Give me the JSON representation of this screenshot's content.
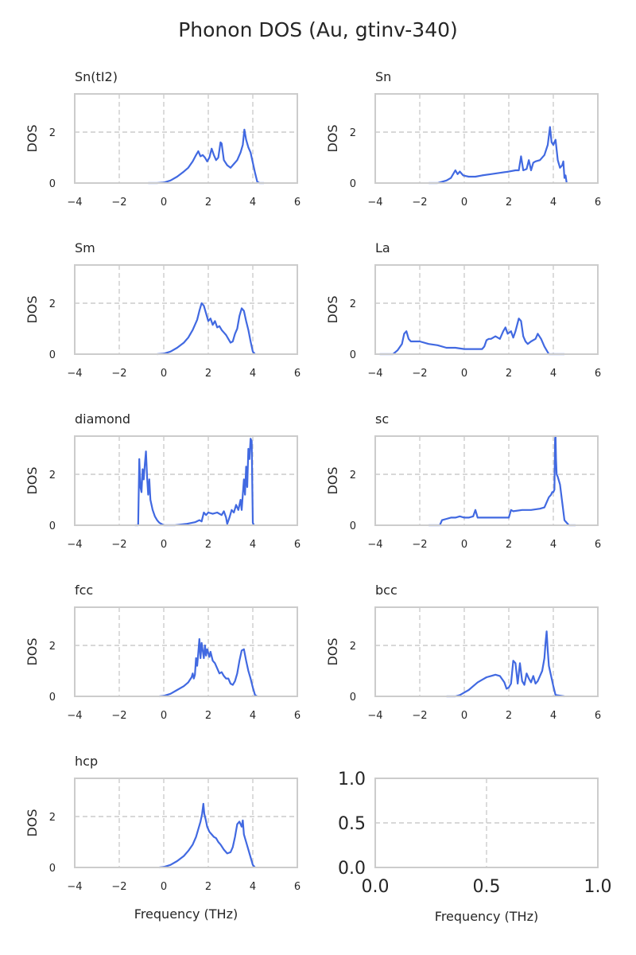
{
  "figure": {
    "title": "Phonon DOS (Au, gtinv-340)",
    "line_color": "#4169e1",
    "grid_color": "#cccccc"
  },
  "chart_data": [
    {
      "type": "line",
      "title": "Sn(tI2)",
      "xlabel": "",
      "ylabel": "DOS",
      "xlim": [
        -4,
        6
      ],
      "ylim": [
        0,
        3.5
      ],
      "xticks": [
        -4,
        -2,
        0,
        2,
        4,
        6
      ],
      "yticks": [
        0,
        2
      ],
      "grid": true,
      "series": [
        {
          "x": [
            -0.7,
            -0.3,
            0,
            0.3,
            0.6,
            0.9,
            1.1,
            1.3,
            1.45,
            1.55,
            1.65,
            1.75,
            1.85,
            1.95,
            2.05,
            2.15,
            2.25,
            2.35,
            2.45,
            2.55,
            2.6,
            2.7,
            2.85,
            3.0,
            3.15,
            3.3,
            3.45,
            3.55,
            3.62,
            3.7,
            3.8,
            3.9,
            4.0,
            4.1,
            4.2,
            4.3,
            4.5
          ],
          "y": [
            0,
            0,
            0.02,
            0.1,
            0.25,
            0.45,
            0.6,
            0.85,
            1.1,
            1.25,
            1.05,
            1.1,
            1.0,
            0.85,
            1.0,
            1.35,
            1.1,
            0.9,
            1.0,
            1.6,
            1.55,
            0.9,
            0.7,
            0.6,
            0.75,
            0.9,
            1.2,
            1.5,
            2.1,
            1.7,
            1.4,
            1.2,
            0.8,
            0.4,
            0.05,
            0,
            0
          ]
        }
      ]
    },
    {
      "type": "line",
      "title": "Sn",
      "xlabel": "",
      "ylabel": "DOS",
      "xlim": [
        -4,
        6
      ],
      "ylim": [
        0,
        3.5
      ],
      "xticks": [
        -4,
        -2,
        0,
        2,
        4,
        6
      ],
      "yticks": [
        0,
        2
      ],
      "grid": true,
      "series": [
        {
          "x": [
            -1.6,
            -1.2,
            -1.0,
            -0.8,
            -0.6,
            -0.4,
            -0.3,
            -0.2,
            -0.05,
            0.2,
            0.5,
            0.8,
            1.2,
            1.6,
            2.0,
            2.3,
            2.45,
            2.55,
            2.65,
            2.8,
            2.9,
            3.0,
            3.1,
            3.2,
            3.4,
            3.6,
            3.75,
            3.85,
            3.92,
            4.0,
            4.1,
            4.2,
            4.3,
            4.4,
            4.45,
            4.5,
            4.55,
            4.6
          ],
          "y": [
            0,
            0,
            0.05,
            0.1,
            0.2,
            0.5,
            0.35,
            0.45,
            0.3,
            0.25,
            0.25,
            0.3,
            0.35,
            0.4,
            0.45,
            0.5,
            0.5,
            1.05,
            0.5,
            0.55,
            0.9,
            0.5,
            0.8,
            0.85,
            0.9,
            1.1,
            1.5,
            2.2,
            1.6,
            1.5,
            1.7,
            0.9,
            0.6,
            0.7,
            0.85,
            0.2,
            0.3,
            0
          ]
        }
      ]
    },
    {
      "type": "line",
      "title": "Sm",
      "xlabel": "",
      "ylabel": "DOS",
      "xlim": [
        -4,
        6
      ],
      "ylim": [
        0,
        3.5
      ],
      "xticks": [
        -4,
        -2,
        0,
        2,
        4,
        6
      ],
      "yticks": [
        0,
        2
      ],
      "grid": true,
      "series": [
        {
          "x": [
            -0.3,
            0,
            0.3,
            0.6,
            0.9,
            1.1,
            1.3,
            1.5,
            1.6,
            1.7,
            1.8,
            1.9,
            2.0,
            2.1,
            2.2,
            2.3,
            2.4,
            2.5,
            2.6,
            2.7,
            2.8,
            2.9,
            3.0,
            3.1,
            3.2,
            3.3,
            3.4,
            3.5,
            3.6,
            3.7,
            3.8,
            3.9,
            4.0,
            4.1
          ],
          "y": [
            0,
            0.02,
            0.1,
            0.25,
            0.45,
            0.65,
            0.95,
            1.35,
            1.7,
            2.0,
            1.9,
            1.6,
            1.3,
            1.4,
            1.15,
            1.3,
            1.05,
            1.1,
            0.95,
            0.85,
            0.75,
            0.6,
            0.45,
            0.5,
            0.8,
            1.0,
            1.5,
            1.8,
            1.7,
            1.3,
            0.95,
            0.5,
            0.1,
            0
          ]
        }
      ]
    },
    {
      "type": "line",
      "title": "La",
      "xlabel": "",
      "ylabel": "DOS",
      "xlim": [
        -4,
        6
      ],
      "ylim": [
        0,
        3.5
      ],
      "xticks": [
        -4,
        -2,
        0,
        2,
        4,
        6
      ],
      "yticks": [
        0,
        2
      ],
      "grid": true,
      "series": [
        {
          "x": [
            -3.8,
            -3.2,
            -3.0,
            -2.8,
            -2.7,
            -2.6,
            -2.5,
            -2.4,
            -2.2,
            -2.0,
            -1.6,
            -1.2,
            -0.8,
            -0.4,
            0,
            0.4,
            0.8,
            0.9,
            1.0,
            1.1,
            1.2,
            1.4,
            1.6,
            1.75,
            1.85,
            1.95,
            2.1,
            2.2,
            2.3,
            2.45,
            2.55,
            2.65,
            2.75,
            2.85,
            3.0,
            3.2,
            3.3,
            3.45,
            3.6,
            3.8,
            4.2,
            4.5
          ],
          "y": [
            0,
            0,
            0.15,
            0.4,
            0.8,
            0.9,
            0.6,
            0.5,
            0.5,
            0.5,
            0.4,
            0.35,
            0.25,
            0.25,
            0.2,
            0.2,
            0.2,
            0.3,
            0.55,
            0.6,
            0.6,
            0.7,
            0.6,
            0.9,
            1.05,
            0.8,
            0.9,
            0.65,
            0.9,
            1.4,
            1.3,
            0.7,
            0.5,
            0.4,
            0.5,
            0.6,
            0.8,
            0.6,
            0.3,
            0,
            0,
            0
          ]
        }
      ]
    },
    {
      "type": "line",
      "title": "diamond",
      "xlabel": "",
      "ylabel": "DOS",
      "xlim": [
        -4,
        6
      ],
      "ylim": [
        0,
        3.5
      ],
      "xticks": [
        -4,
        -2,
        0,
        2,
        4,
        6
      ],
      "yticks": [
        0,
        2
      ],
      "grid": true,
      "series": [
        {
          "x": [
            -1.3,
            -1.15,
            -1.1,
            -1.05,
            -1.0,
            -0.95,
            -0.9,
            -0.85,
            -0.8,
            -0.75,
            -0.7,
            -0.65,
            -0.6,
            -0.5,
            -0.4,
            -0.3,
            -0.2,
            -0.1,
            0,
            0.5,
            1.0,
            1.4,
            1.6,
            1.7,
            1.8,
            1.9,
            2.0,
            2.2,
            2.4,
            2.6,
            2.7,
            2.8,
            2.85,
            2.95,
            3.05,
            3.15,
            3.25,
            3.35,
            3.45,
            3.5,
            3.6,
            3.65,
            3.7,
            3.75,
            3.8,
            3.85,
            3.9,
            3.95,
            4.0,
            4.05
          ],
          "y": [
            0,
            0,
            2.6,
            1.5,
            1.3,
            2.2,
            1.8,
            2.4,
            2.9,
            1.9,
            1.2,
            1.8,
            1.0,
            0.6,
            0.35,
            0.2,
            0.1,
            0.05,
            0,
            0,
            0.05,
            0.12,
            0.2,
            0.15,
            0.5,
            0.4,
            0.5,
            0.45,
            0.5,
            0.4,
            0.55,
            0.3,
            0.05,
            0.3,
            0.6,
            0.5,
            0.8,
            0.6,
            1.0,
            0.6,
            1.8,
            1.2,
            2.3,
            1.5,
            3.0,
            2.6,
            3.4,
            3.3,
            0.1,
            0
          ]
        }
      ]
    },
    {
      "type": "line",
      "title": "sc",
      "xlabel": "",
      "ylabel": "DOS",
      "xlim": [
        -4,
        6
      ],
      "ylim": [
        0,
        3.5
      ],
      "xticks": [
        -4,
        -2,
        0,
        2,
        4,
        6
      ],
      "yticks": [
        0,
        2
      ],
      "grid": true,
      "series": [
        {
          "x": [
            -1.6,
            -1.1,
            -1.0,
            -0.8,
            -0.6,
            -0.4,
            -0.2,
            0,
            0.2,
            0.4,
            0.5,
            0.6,
            0.8,
            1.2,
            1.6,
            2.0,
            2.1,
            2.2,
            2.6,
            3.0,
            3.4,
            3.6,
            3.7,
            3.8,
            3.9,
            3.95,
            4.0,
            4.05,
            4.08,
            4.1,
            4.12,
            4.15,
            4.2,
            4.3,
            4.4,
            4.5,
            4.7,
            5.0
          ],
          "y": [
            0,
            0,
            0.2,
            0.25,
            0.3,
            0.3,
            0.35,
            0.3,
            0.3,
            0.35,
            0.6,
            0.3,
            0.3,
            0.3,
            0.3,
            0.3,
            0.6,
            0.55,
            0.6,
            0.6,
            0.65,
            0.7,
            0.9,
            1.1,
            1.2,
            1.3,
            1.3,
            1.4,
            3.4,
            3.5,
            2.6,
            2.0,
            1.9,
            1.6,
            0.9,
            0.2,
            0,
            0
          ]
        }
      ]
    },
    {
      "type": "line",
      "title": "fcc",
      "xlabel": "",
      "ylabel": "DOS",
      "xlim": [
        -4,
        6
      ],
      "ylim": [
        0,
        3.5
      ],
      "xticks": [
        -4,
        -2,
        0,
        2,
        4,
        6
      ],
      "yticks": [
        0,
        2
      ],
      "grid": true,
      "series": [
        {
          "x": [
            -0.2,
            0,
            0.3,
            0.6,
            0.9,
            1.1,
            1.25,
            1.3,
            1.35,
            1.4,
            1.45,
            1.5,
            1.55,
            1.6,
            1.65,
            1.7,
            1.75,
            1.8,
            1.85,
            1.9,
            1.95,
            2.0,
            2.05,
            2.1,
            2.2,
            2.3,
            2.4,
            2.5,
            2.6,
            2.7,
            2.8,
            2.9,
            3.0,
            3.1,
            3.2,
            3.3,
            3.4,
            3.5,
            3.6,
            3.7,
            3.8,
            3.9,
            4.0,
            4.1,
            4.2
          ],
          "y": [
            0,
            0.02,
            0.1,
            0.25,
            0.4,
            0.55,
            0.75,
            0.9,
            0.7,
            0.85,
            1.5,
            1.2,
            1.7,
            2.25,
            1.5,
            2.1,
            1.8,
            1.5,
            2.0,
            1.6,
            1.85,
            1.7,
            1.55,
            1.75,
            1.4,
            1.3,
            1.1,
            0.9,
            0.95,
            0.8,
            0.7,
            0.7,
            0.5,
            0.45,
            0.6,
            0.9,
            1.4,
            1.8,
            1.85,
            1.4,
            1.0,
            0.7,
            0.35,
            0.05,
            0
          ]
        }
      ]
    },
    {
      "type": "line",
      "title": "bcc",
      "xlabel": "",
      "ylabel": "DOS",
      "xlim": [
        -4,
        6
      ],
      "ylim": [
        0,
        3.5
      ],
      "xticks": [
        -4,
        -2,
        0,
        2,
        4,
        6
      ],
      "yticks": [
        0,
        2
      ],
      "grid": true,
      "series": [
        {
          "x": [
            -0.8,
            -0.4,
            -0.2,
            0,
            0.2,
            0.4,
            0.6,
            0.8,
            1.0,
            1.2,
            1.4,
            1.6,
            1.8,
            1.9,
            2.0,
            2.1,
            2.2,
            2.3,
            2.4,
            2.5,
            2.6,
            2.7,
            2.8,
            2.9,
            3.0,
            3.1,
            3.2,
            3.3,
            3.4,
            3.5,
            3.6,
            3.65,
            3.7,
            3.75,
            3.8,
            3.9,
            4.0,
            4.1,
            4.5
          ],
          "y": [
            0,
            0,
            0.05,
            0.15,
            0.25,
            0.4,
            0.55,
            0.65,
            0.75,
            0.8,
            0.85,
            0.8,
            0.55,
            0.3,
            0.35,
            0.5,
            1.4,
            1.3,
            0.5,
            1.3,
            0.6,
            0.45,
            0.9,
            0.7,
            0.55,
            0.8,
            0.5,
            0.6,
            0.8,
            1.0,
            1.5,
            2.1,
            2.55,
            1.8,
            1.2,
            0.8,
            0.4,
            0.05,
            0
          ]
        }
      ]
    },
    {
      "type": "line",
      "title": "hcp",
      "xlabel": "Frequency (THz)",
      "ylabel": "DOS",
      "xlim": [
        -4,
        6
      ],
      "ylim": [
        0,
        3.5
      ],
      "xticks": [
        -4,
        -2,
        0,
        2,
        4,
        6
      ],
      "yticks": [
        0,
        2
      ],
      "grid": true,
      "series": [
        {
          "x": [
            -0.2,
            0,
            0.3,
            0.6,
            0.9,
            1.1,
            1.3,
            1.45,
            1.55,
            1.65,
            1.72,
            1.78,
            1.82,
            1.88,
            1.95,
            2.05,
            2.15,
            2.25,
            2.35,
            2.45,
            2.55,
            2.7,
            2.85,
            3.0,
            3.1,
            3.2,
            3.3,
            3.4,
            3.5,
            3.55,
            3.6,
            3.7,
            3.8,
            3.9,
            4.0,
            4.1
          ],
          "y": [
            0,
            0.02,
            0.1,
            0.25,
            0.45,
            0.65,
            0.9,
            1.2,
            1.5,
            1.8,
            2.1,
            2.5,
            2.1,
            1.9,
            1.6,
            1.4,
            1.3,
            1.2,
            1.15,
            1.0,
            0.9,
            0.7,
            0.55,
            0.6,
            0.8,
            1.2,
            1.7,
            1.8,
            1.6,
            1.85,
            1.3,
            1.0,
            0.7,
            0.4,
            0.1,
            0
          ]
        }
      ]
    },
    {
      "type": "line",
      "title": "",
      "xlabel": "Frequency (THz)",
      "ylabel": "",
      "xlim": [
        0,
        1
      ],
      "ylim": [
        0,
        1
      ],
      "xticks": [
        "0.0",
        "0.5",
        "1.0"
      ],
      "yticks": [
        "0.0",
        "0.5",
        "1.0"
      ],
      "grid": true,
      "series": []
    }
  ]
}
